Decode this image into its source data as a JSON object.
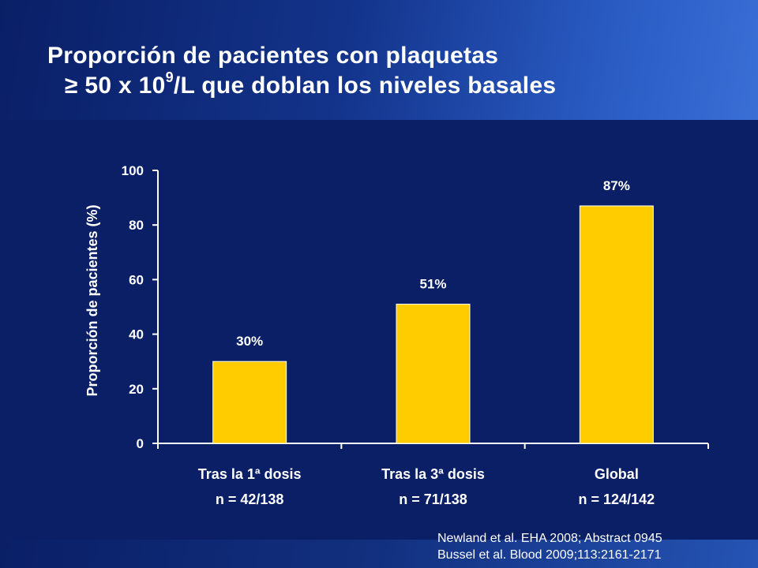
{
  "slide": {
    "title_line1": "Proporción de pacientes con plaquetas",
    "title_line2_pre": "≥ 50 x 10",
    "title_line2_sup": "9",
    "title_line2_post": "/L que doblan los niveles basales",
    "references": [
      "Newland et al. EHA 2008; Abstract 0945",
      "Bussel et al. Blood 2009;113:2161-2171"
    ]
  },
  "colors": {
    "background": "#0a1f66",
    "bar": "#ffcc00",
    "text": "#ffffff"
  },
  "chart_data": {
    "type": "bar",
    "title": "Proporción de pacientes con plaquetas ≥ 50 x 10^9/L que doblan los niveles basales",
    "ylabel": "Proporción de pacientes (%)",
    "xlabel": "",
    "ylim": [
      0,
      100
    ],
    "yticks": [
      0,
      20,
      40,
      60,
      80,
      100
    ],
    "grid": false,
    "categories": [
      "Tras la 1ª dosis",
      "Tras la 3ª dosis",
      "Global"
    ],
    "subcategories": [
      "n = 42/138",
      "n = 71/138",
      "n = 124/142"
    ],
    "values": [
      30,
      51,
      87
    ],
    "value_labels": [
      "30%",
      "51%",
      "87%"
    ]
  }
}
